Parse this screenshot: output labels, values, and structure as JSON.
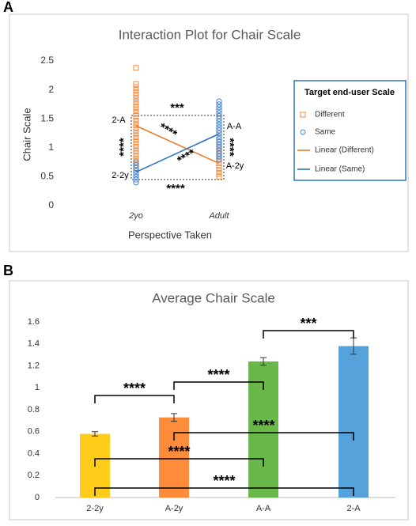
{
  "panels": [
    {
      "label": "A",
      "chart_data": {
        "type": "interaction",
        "title": "Interaction Plot for Chair Scale",
        "x_label": "Perspective Taken",
        "y_label": "Chair Scale",
        "categories": [
          "2yo",
          "Adult"
        ],
        "ylim": [
          0,
          2.5
        ],
        "yticks": [
          0,
          0.5,
          1,
          1.5,
          2,
          2.5
        ],
        "legend_title": "Target end-user Scale",
        "series": [
          {
            "name": "Different",
            "color": "#f08a3c",
            "marker": "square",
            "values": [
              [
                2.38,
                2.1,
                2.05,
                2.0,
                1.95,
                1.9,
                1.85,
                1.8,
                1.75,
                1.7,
                1.65,
                1.6,
                1.55,
                1.5,
                1.45,
                1.4,
                1.35,
                1.3,
                1.25,
                1.2,
                1.15,
                1.1,
                1.05,
                1.0,
                0.95,
                0.9,
                0.85,
                0.8,
                0.75,
                0.7,
                0.65
              ],
              [
                1.1,
                1.05,
                1.0,
                0.95,
                0.9,
                0.85,
                0.8,
                0.75,
                0.7,
                0.65,
                0.6,
                0.55,
                0.5
              ]
            ]
          },
          {
            "name": "Same",
            "color": "#4a86d0",
            "marker": "circle",
            "values": [
              [
                0.75,
                0.7,
                0.65,
                0.6,
                0.55,
                0.5,
                0.45,
                0.4
              ],
              [
                1.8,
                1.75,
                1.7,
                1.65,
                1.6,
                1.55,
                1.5,
                1.45,
                1.4,
                1.35,
                1.3,
                1.25,
                1.2,
                1.15,
                1.1,
                1.05,
                1.0,
                0.95,
                0.9,
                0.85,
                0.8
              ]
            ]
          }
        ],
        "lines": [
          {
            "name": "Linear (Different)",
            "color": "#ed7d31",
            "values": [
              1.38,
              0.73
            ]
          },
          {
            "name": "Linear (Same)",
            "color": "#2e75c6",
            "values": [
              0.58,
              1.24
            ]
          }
        ],
        "annotations": [
          {
            "text": "2-A"
          },
          {
            "text": "2-2y"
          },
          {
            "text": "A-A"
          },
          {
            "text": "A-2y"
          },
          {
            "text": "***"
          },
          {
            "text": "****"
          },
          {
            "text": "****"
          },
          {
            "text": "****"
          },
          {
            "text": "****"
          },
          {
            "text": "****"
          }
        ]
      }
    },
    {
      "label": "B",
      "chart_data": {
        "type": "bar",
        "title": "Average Chair Scale",
        "categories": [
          "2-2y",
          "A-2y",
          "A-A",
          "2-A"
        ],
        "values": [
          0.58,
          0.73,
          1.24,
          1.38
        ],
        "errors": [
          0.02,
          0.035,
          0.035,
          0.075
        ],
        "colors": [
          "#ffcc1a",
          "#ff8c3a",
          "#6ab84a",
          "#56a3dc"
        ],
        "ylim": [
          0,
          1.6
        ],
        "yticks": [
          0,
          0.2,
          0.4,
          0.6,
          0.8,
          1,
          1.2,
          1.4,
          1.6
        ],
        "brackets": [
          {
            "from": 2,
            "to": 3,
            "label": "***"
          },
          {
            "from": 1,
            "to": 2,
            "label": "****"
          },
          {
            "from": 0,
            "to": 1,
            "label": "****"
          },
          {
            "from": 1,
            "to": 3,
            "label": "****"
          },
          {
            "from": 0,
            "to": 2,
            "label": "****"
          },
          {
            "from": 0,
            "to": 3,
            "label": "****"
          }
        ]
      }
    }
  ]
}
